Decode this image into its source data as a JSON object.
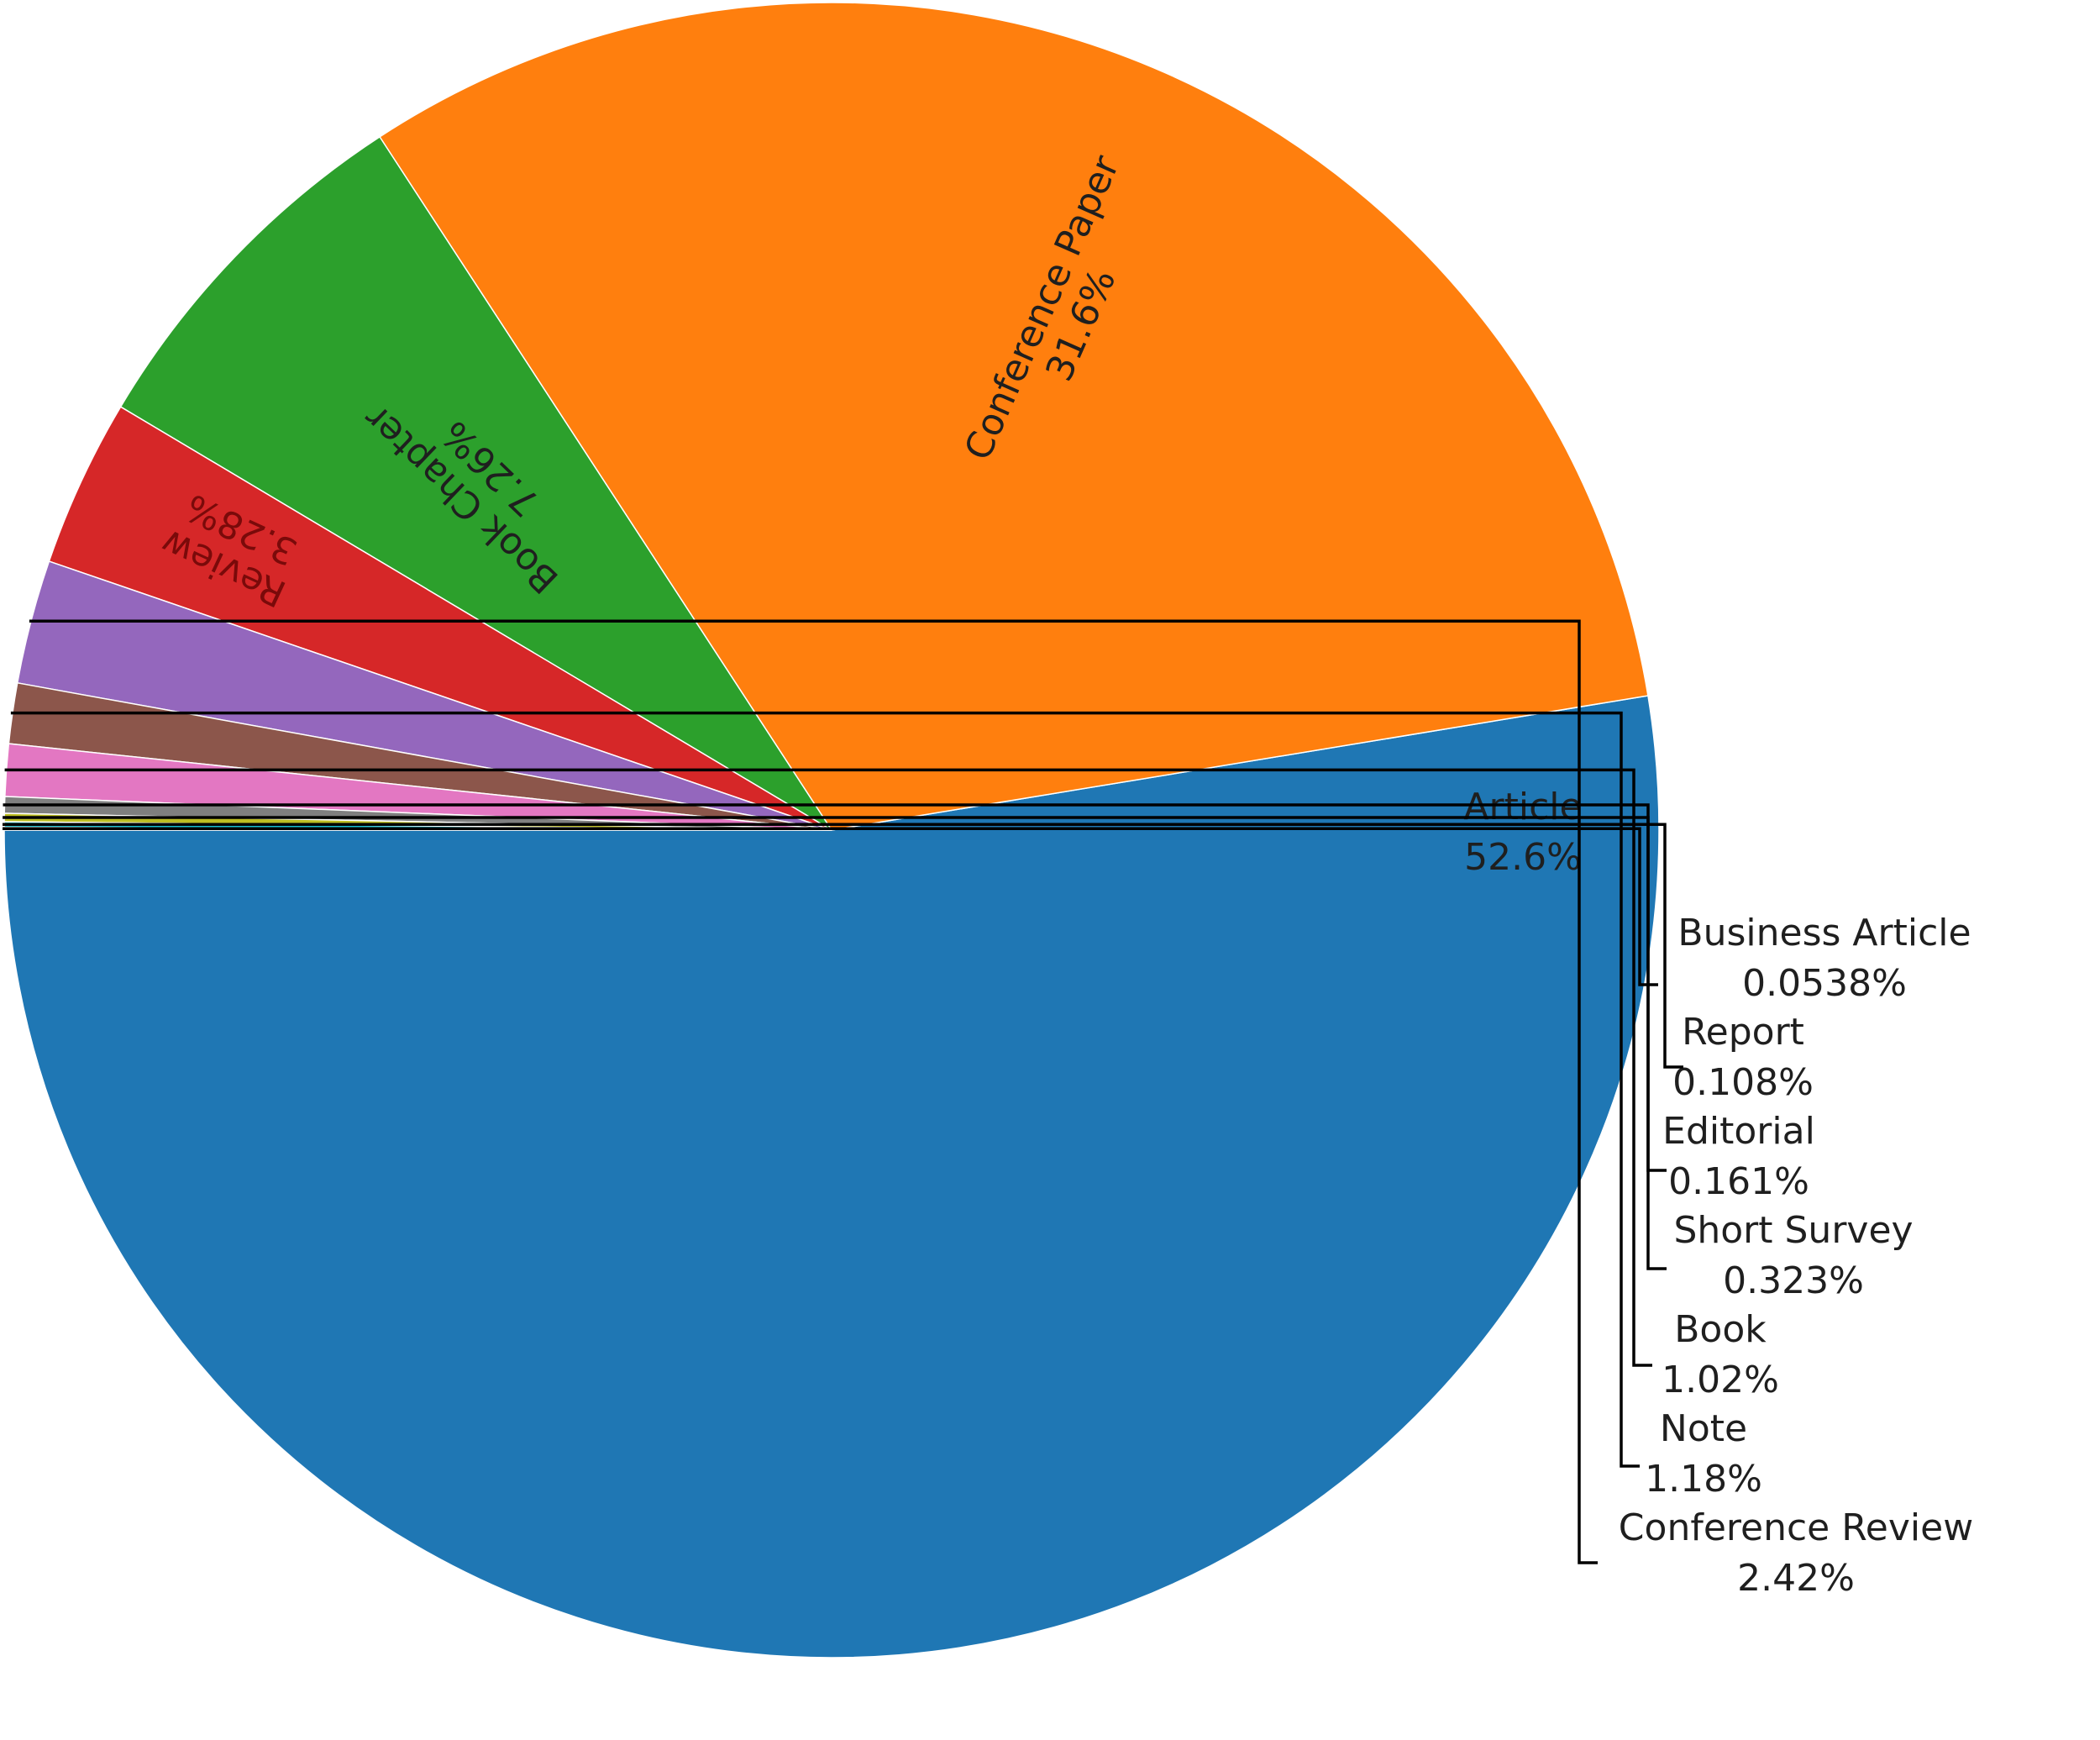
{
  "chart_data": {
    "type": "pie",
    "slices": [
      {
        "label": "Article",
        "percent": 52.6,
        "percent_label": "52.6%",
        "color": "#1f77b4"
      },
      {
        "label": "Conference Paper",
        "percent": 31.6,
        "percent_label": "31.6%",
        "color": "#ff7f0e"
      },
      {
        "label": "Book Chapter",
        "percent": 7.26,
        "percent_label": "7.26%",
        "color": "#2ca02c"
      },
      {
        "label": "Review",
        "percent": 3.28,
        "percent_label": "3.28%",
        "color": "#d62728"
      },
      {
        "label": "Conference Review",
        "percent": 2.42,
        "percent_label": "2.42%",
        "color": "#9467bd"
      },
      {
        "label": "Note",
        "percent": 1.18,
        "percent_label": "1.18%",
        "color": "#8c564b"
      },
      {
        "label": "Book",
        "percent": 1.02,
        "percent_label": "1.02%",
        "color": "#e377c2"
      },
      {
        "label": "Short Survey",
        "percent": 0.323,
        "percent_label": "0.323%",
        "color": "#7f7f7f"
      },
      {
        "label": "Editorial",
        "percent": 0.161,
        "percent_label": "0.161%",
        "color": "#bcbd22"
      },
      {
        "label": "Report",
        "percent": 0.108,
        "percent_label": "0.108%",
        "color": "#17becf"
      },
      {
        "label": "Business Article",
        "percent": 0.0538,
        "percent_label": "0.0538%",
        "color": "#1f77b4"
      }
    ]
  }
}
